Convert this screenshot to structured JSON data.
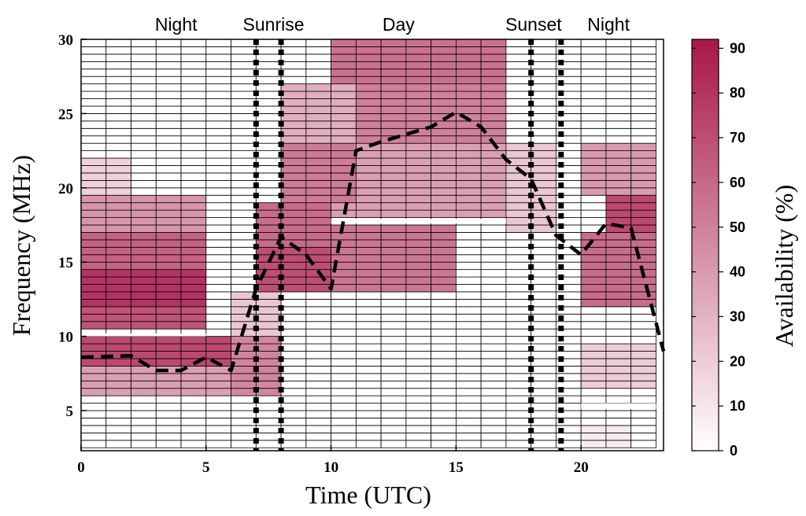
{
  "chart_data": {
    "type": "heatmap",
    "xlabel": "Time (UTC)",
    "ylabel": "Frequency (MHz)",
    "colorbar_label": "Availability (%)",
    "xlim": [
      0,
      23.3
    ],
    "ylim": [
      2.3,
      30
    ],
    "x_ticks": [
      0,
      5,
      10,
      15,
      20
    ],
    "y_ticks": [
      5,
      10,
      15,
      20,
      25,
      30
    ],
    "colorbar_ticks": [
      0,
      10,
      20,
      30,
      40,
      50,
      60,
      70,
      80,
      90
    ],
    "colorbar_range": [
      0,
      92
    ],
    "color_low": "#ffffff",
    "color_high": "#a8164a",
    "cell_border_color": "#000000",
    "frequency_step_mhz": 0.5,
    "hours": [
      0,
      1,
      2,
      3,
      4,
      5,
      6,
      7,
      8,
      9,
      10,
      11,
      12,
      13,
      14,
      15,
      16,
      17,
      18,
      19,
      20,
      21,
      22
    ],
    "frequency_gaps": [
      {
        "from_hour": 20,
        "to_hour": 23,
        "from_mhz": 5.1,
        "to_mhz": 5.5
      },
      {
        "from_hour": 0,
        "to_hour": 5,
        "from_mhz": 10.0,
        "to_mhz": 10.2
      },
      {
        "from_hour": 10,
        "to_hour": 17,
        "from_mhz": 17.6,
        "to_mhz": 17.9
      }
    ],
    "availability_bands": [
      {
        "from_hour": 0,
        "to_hour": 6,
        "from_mhz": 6,
        "to_mhz": 8,
        "value": 38
      },
      {
        "from_hour": 0,
        "to_hour": 6,
        "from_mhz": 8,
        "to_mhz": 10,
        "value": 72
      },
      {
        "from_hour": 0,
        "to_hour": 5,
        "from_mhz": 10.5,
        "to_mhz": 12,
        "value": 68
      },
      {
        "from_hour": 0,
        "to_hour": 5,
        "from_mhz": 12,
        "to_mhz": 14.5,
        "value": 80
      },
      {
        "from_hour": 0,
        "to_hour": 5,
        "from_mhz": 14.5,
        "to_mhz": 17,
        "value": 62
      },
      {
        "from_hour": 0,
        "to_hour": 5,
        "from_mhz": 17,
        "to_mhz": 19.5,
        "value": 42
      },
      {
        "from_hour": 0,
        "to_hour": 2,
        "from_mhz": 19.5,
        "to_mhz": 22,
        "value": 18
      },
      {
        "from_hour": 6,
        "to_hour": 8,
        "from_mhz": 6,
        "to_mhz": 10,
        "value": 48
      },
      {
        "from_hour": 6,
        "to_hour": 8,
        "from_mhz": 10,
        "to_mhz": 13,
        "value": 22
      },
      {
        "from_hour": 7,
        "to_hour": 10,
        "from_mhz": 13,
        "to_mhz": 16,
        "value": 70
      },
      {
        "from_hour": 7,
        "to_hour": 10,
        "from_mhz": 16,
        "to_mhz": 19,
        "value": 58
      },
      {
        "from_hour": 8,
        "to_hour": 11,
        "from_mhz": 19,
        "to_mhz": 23,
        "value": 52
      },
      {
        "from_hour": 8,
        "to_hour": 11,
        "from_mhz": 23,
        "to_mhz": 27,
        "value": 32
      },
      {
        "from_hour": 10,
        "to_hour": 15,
        "from_mhz": 13,
        "to_mhz": 17.5,
        "value": 54
      },
      {
        "from_hour": 10,
        "to_hour": 17,
        "from_mhz": 18,
        "to_mhz": 23,
        "value": 38
      },
      {
        "from_hour": 11,
        "to_hour": 17,
        "from_mhz": 23,
        "to_mhz": 27,
        "value": 50
      },
      {
        "from_hour": 10,
        "to_hour": 17,
        "from_mhz": 27,
        "to_mhz": 30,
        "value": 56
      },
      {
        "from_hour": 17,
        "to_hour": 19,
        "from_mhz": 17,
        "to_mhz": 23,
        "value": 22
      },
      {
        "from_hour": 20,
        "to_hour": 23,
        "from_mhz": 12,
        "to_mhz": 17,
        "value": 58
      },
      {
        "from_hour": 21,
        "to_hour": 23,
        "from_mhz": 17,
        "to_mhz": 19.5,
        "value": 72
      },
      {
        "from_hour": 20,
        "to_hour": 23,
        "from_mhz": 19.5,
        "to_mhz": 23,
        "value": 40
      },
      {
        "from_hour": 20,
        "to_hour": 23,
        "from_mhz": 6.5,
        "to_mhz": 9.5,
        "value": 20
      },
      {
        "from_hour": 20,
        "to_hour": 22,
        "from_mhz": 2.5,
        "to_mhz": 4,
        "value": 8
      }
    ],
    "period_labels": [
      {
        "label": "Night",
        "x": 3.8
      },
      {
        "label": "Sunrise",
        "x": 7.7
      },
      {
        "label": "Day",
        "x": 12.7
      },
      {
        "label": "Sunset",
        "x": 18.1
      },
      {
        "label": "Night",
        "x": 21.1
      }
    ],
    "vertical_markers": [
      7,
      8,
      18,
      19.2
    ],
    "max_frequency_line": {
      "style": "dashed",
      "x": [
        0,
        2,
        3,
        4,
        5,
        6,
        7,
        8,
        9,
        10,
        11,
        12,
        13,
        14,
        15,
        16,
        17,
        18,
        19,
        20,
        21,
        22,
        23.3
      ],
      "y": [
        8.6,
        8.7,
        7.7,
        7.7,
        8.6,
        7.7,
        13.2,
        16.7,
        15.5,
        13.2,
        22.5,
        23.1,
        23.6,
        24.1,
        25.1,
        24.1,
        21.9,
        20.6,
        16.8,
        15.5,
        17.6,
        17.3,
        9.0
      ]
    }
  }
}
